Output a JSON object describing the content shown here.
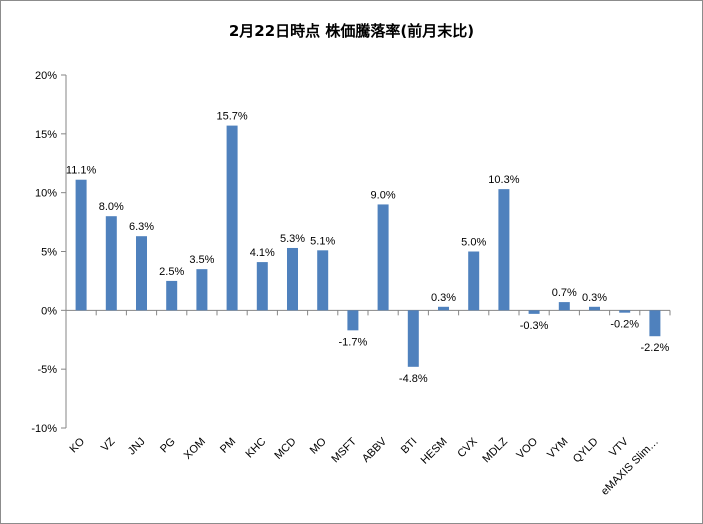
{
  "chart_data": {
    "type": "bar",
    "title": "2月22日時点 株価騰落率(前月末比)",
    "xlabel": "",
    "ylabel": "",
    "categories": [
      "KO",
      "VZ",
      "JNJ",
      "PG",
      "XOM",
      "PM",
      "KHC",
      "MCD",
      "MO",
      "MSFT",
      "ABBV",
      "BTI",
      "HESM",
      "CVX",
      "MDLZ",
      "VOO",
      "VYM",
      "QYLD",
      "VTV",
      "eMAXIS Slim…"
    ],
    "series": [
      {
        "values": [
          11.1,
          8.0,
          6.3,
          2.5,
          3.5,
          15.7,
          4.1,
          5.3,
          5.1,
          -1.7,
          9.0,
          -4.8,
          0.3,
          5.0,
          10.3,
          -0.3,
          0.7,
          0.3,
          -0.2,
          -2.2
        ],
        "labels": [
          "11.1%",
          "8.0%",
          "6.3%",
          "2.5%",
          "3.5%",
          "15.7%",
          "4.1%",
          "5.3%",
          "5.1%",
          "-1.7%",
          "9.0%",
          "-4.8%",
          "0.3%",
          "5.0%",
          "10.3%",
          "-0.3%",
          "0.7%",
          "0.3%",
          "-0.2%",
          "-2.2%"
        ],
        "color": "#4f81bd"
      }
    ],
    "ylim": [
      -10,
      20
    ],
    "yticks": [
      20,
      15,
      10,
      5,
      0,
      -5,
      -10
    ],
    "ytick_labels": [
      "20%",
      "15%",
      "10%",
      "5%",
      "0%",
      "-5%",
      "-10%"
    ],
    "grid": false,
    "legend": "none",
    "colors": {
      "axis": "#868686",
      "bar": "#4f81bd"
    }
  }
}
